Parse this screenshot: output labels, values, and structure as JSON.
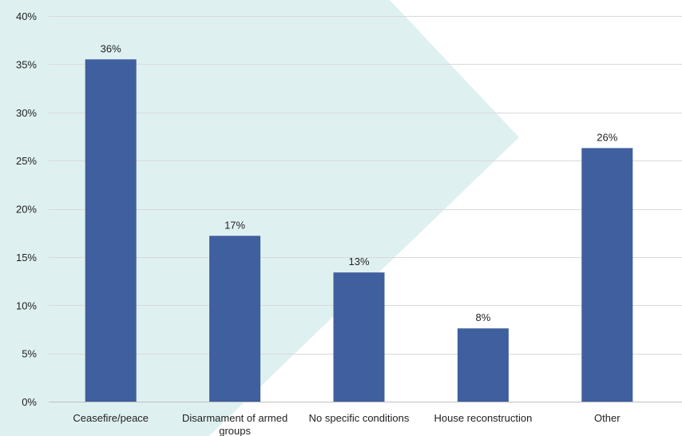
{
  "chart_data": {
    "type": "bar",
    "categories": [
      "Ceasefire/peace",
      "Disarmament of armed groups",
      "No specific conditions",
      "House reconstruction",
      "Other"
    ],
    "category_label_lines": [
      [
        "Ceasefire/peace"
      ],
      [
        "Disarmament of armed",
        "groups"
      ],
      [
        "No specific conditions"
      ],
      [
        "House reconstruction"
      ],
      [
        "Other"
      ]
    ],
    "values": [
      35.5,
      17.2,
      13.4,
      7.6,
      26.3
    ],
    "data_labels": [
      "36%",
      "17%",
      "13%",
      "8%",
      "26%"
    ],
    "y_ticks": [
      0,
      5,
      10,
      15,
      20,
      25,
      30,
      35,
      40
    ],
    "y_tick_labels": [
      "0%",
      "5%",
      "10%",
      "15%",
      "20%",
      "25%",
      "30%",
      "35%",
      "40%"
    ],
    "ylim": [
      0,
      40
    ],
    "grid": true,
    "legend": "none",
    "title": "",
    "xlabel": "",
    "ylabel": ""
  },
  "colors": {
    "bar": "#3f5f9e",
    "grid": "#d9d9d9",
    "axis": "#bfbfbf",
    "background_shape": "#dff0f0"
  }
}
